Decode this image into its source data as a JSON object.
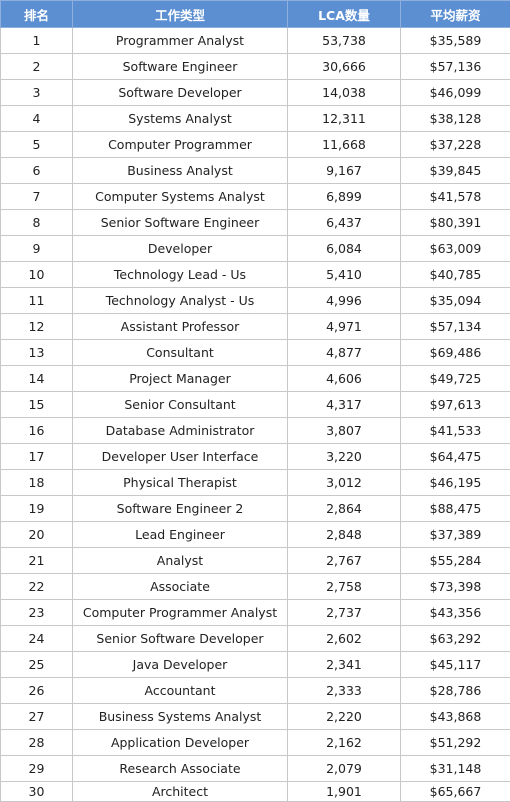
{
  "table": {
    "header": [
      "排名",
      "工作类型",
      "LCA数量",
      "平均薪资"
    ],
    "rows": [
      [
        "1",
        "Programmer Analyst",
        "53,738",
        "$35,589"
      ],
      [
        "2",
        "Software Engineer",
        "30,666",
        "$57,136"
      ],
      [
        "3",
        "Software Developer",
        "14,038",
        "$46,099"
      ],
      [
        "4",
        "Systems Analyst",
        "12,311",
        "$38,128"
      ],
      [
        "5",
        "Computer Programmer",
        "11,668",
        "$37,228"
      ],
      [
        "6",
        "Business Analyst",
        "9,167",
        "$39,845"
      ],
      [
        "7",
        "Computer Systems Analyst",
        "6,899",
        "$41,578"
      ],
      [
        "8",
        "Senior Software Engineer",
        "6,437",
        "$80,391"
      ],
      [
        "9",
        "Developer",
        "6,084",
        "$63,009"
      ],
      [
        "10",
        "Technology Lead - Us",
        "5,410",
        "$40,785"
      ],
      [
        "11",
        "Technology Analyst - Us",
        "4,996",
        "$35,094"
      ],
      [
        "12",
        "Assistant Professor",
        "4,971",
        "$57,134"
      ],
      [
        "13",
        "Consultant",
        "4,877",
        "$69,486"
      ],
      [
        "14",
        "Project Manager",
        "4,606",
        "$49,725"
      ],
      [
        "15",
        "Senior Consultant",
        "4,317",
        "$97,613"
      ],
      [
        "16",
        "Database Administrator",
        "3,807",
        "$41,533"
      ],
      [
        "17",
        "Developer User Interface",
        "3,220",
        "$64,475"
      ],
      [
        "18",
        "Physical Therapist",
        "3,012",
        "$46,195"
      ],
      [
        "19",
        "Software Engineer 2",
        "2,864",
        "$88,475"
      ],
      [
        "20",
        "Lead Engineer",
        "2,848",
        "$37,389"
      ],
      [
        "21",
        "Analyst",
        "2,767",
        "$55,284"
      ],
      [
        "22",
        "Associate",
        "2,758",
        "$73,398"
      ],
      [
        "23",
        "Computer Programmer Analyst",
        "2,737",
        "$43,356"
      ],
      [
        "24",
        "Senior Software Developer",
        "2,602",
        "$63,292"
      ],
      [
        "25",
        "Java Developer",
        "2,341",
        "$45,117"
      ],
      [
        "26",
        "Accountant",
        "2,333",
        "$28,786"
      ],
      [
        "27",
        "Business Systems Analyst",
        "2,220",
        "$43,868"
      ],
      [
        "28",
        "Application Developer",
        "2,162",
        "$51,292"
      ],
      [
        "29",
        "Research Associate",
        "2,079",
        "$31,148"
      ],
      [
        "30",
        "Architect",
        "1,901",
        "$65,667"
      ]
    ]
  }
}
